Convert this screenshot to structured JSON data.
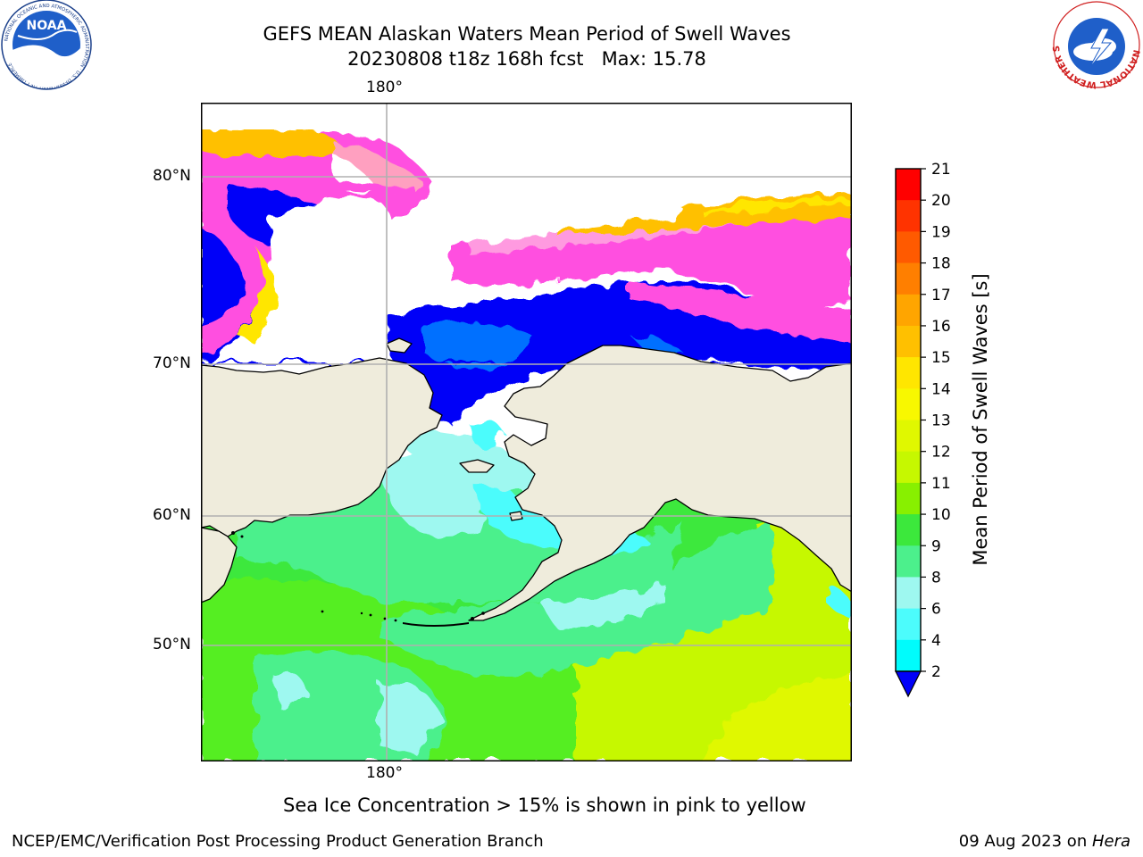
{
  "header": {
    "title_line1": "GEFS MEAN Alaskan Waters Mean Period of Swell Waves",
    "title_line2": "20230808 t18z 168h fcst   Max: 15.78"
  },
  "logos": {
    "left": "noaa-logo",
    "right": "national-weather-service-logo",
    "noaa_text": "NOAA",
    "noaa_ring_text": "NATIONAL OCEANIC AND ATMOSPHERIC ADMINISTRATION · U.S. DEPARTMENT OF COMMERCE",
    "nws_ring_text": "NATIONAL WEATHER SERVICE"
  },
  "map": {
    "lon_label_top": "180°",
    "lon_label_bottom": "180°",
    "lat_labels": [
      "80°N",
      "70°N",
      "60°N",
      "50°N"
    ],
    "land_color": "#efecdc",
    "grid_color": "#b0b0b0"
  },
  "colorbar": {
    "label": "Mean Period of Swell Waves [s]",
    "ticks": [
      "21",
      "20",
      "19",
      "18",
      "17",
      "16",
      "15",
      "14",
      "13",
      "12",
      "11",
      "10",
      "9",
      "8",
      "6",
      "4",
      "2"
    ],
    "colors": [
      "#ff0000",
      "#ff3300",
      "#ff5a00",
      "#ff7f00",
      "#ffa500",
      "#ffc000",
      "#ffe600",
      "#f8f800",
      "#e0f800",
      "#c6f800",
      "#88f000",
      "#3ce83c",
      "#4cf08c",
      "#9ef8f0",
      "#4cfcfc",
      "#00fcfc",
      "#00e0f8",
      "#0070ff",
      "#0000f8"
    ]
  },
  "notes": {
    "sea_ice": "Sea Ice Concentration > 15% is shown in pink to yellow"
  },
  "footer": {
    "left": "NCEP/EMC/Verification Post Processing Product Generation Branch",
    "date": "09 Aug 2023 on ",
    "machine": "Hera"
  }
}
